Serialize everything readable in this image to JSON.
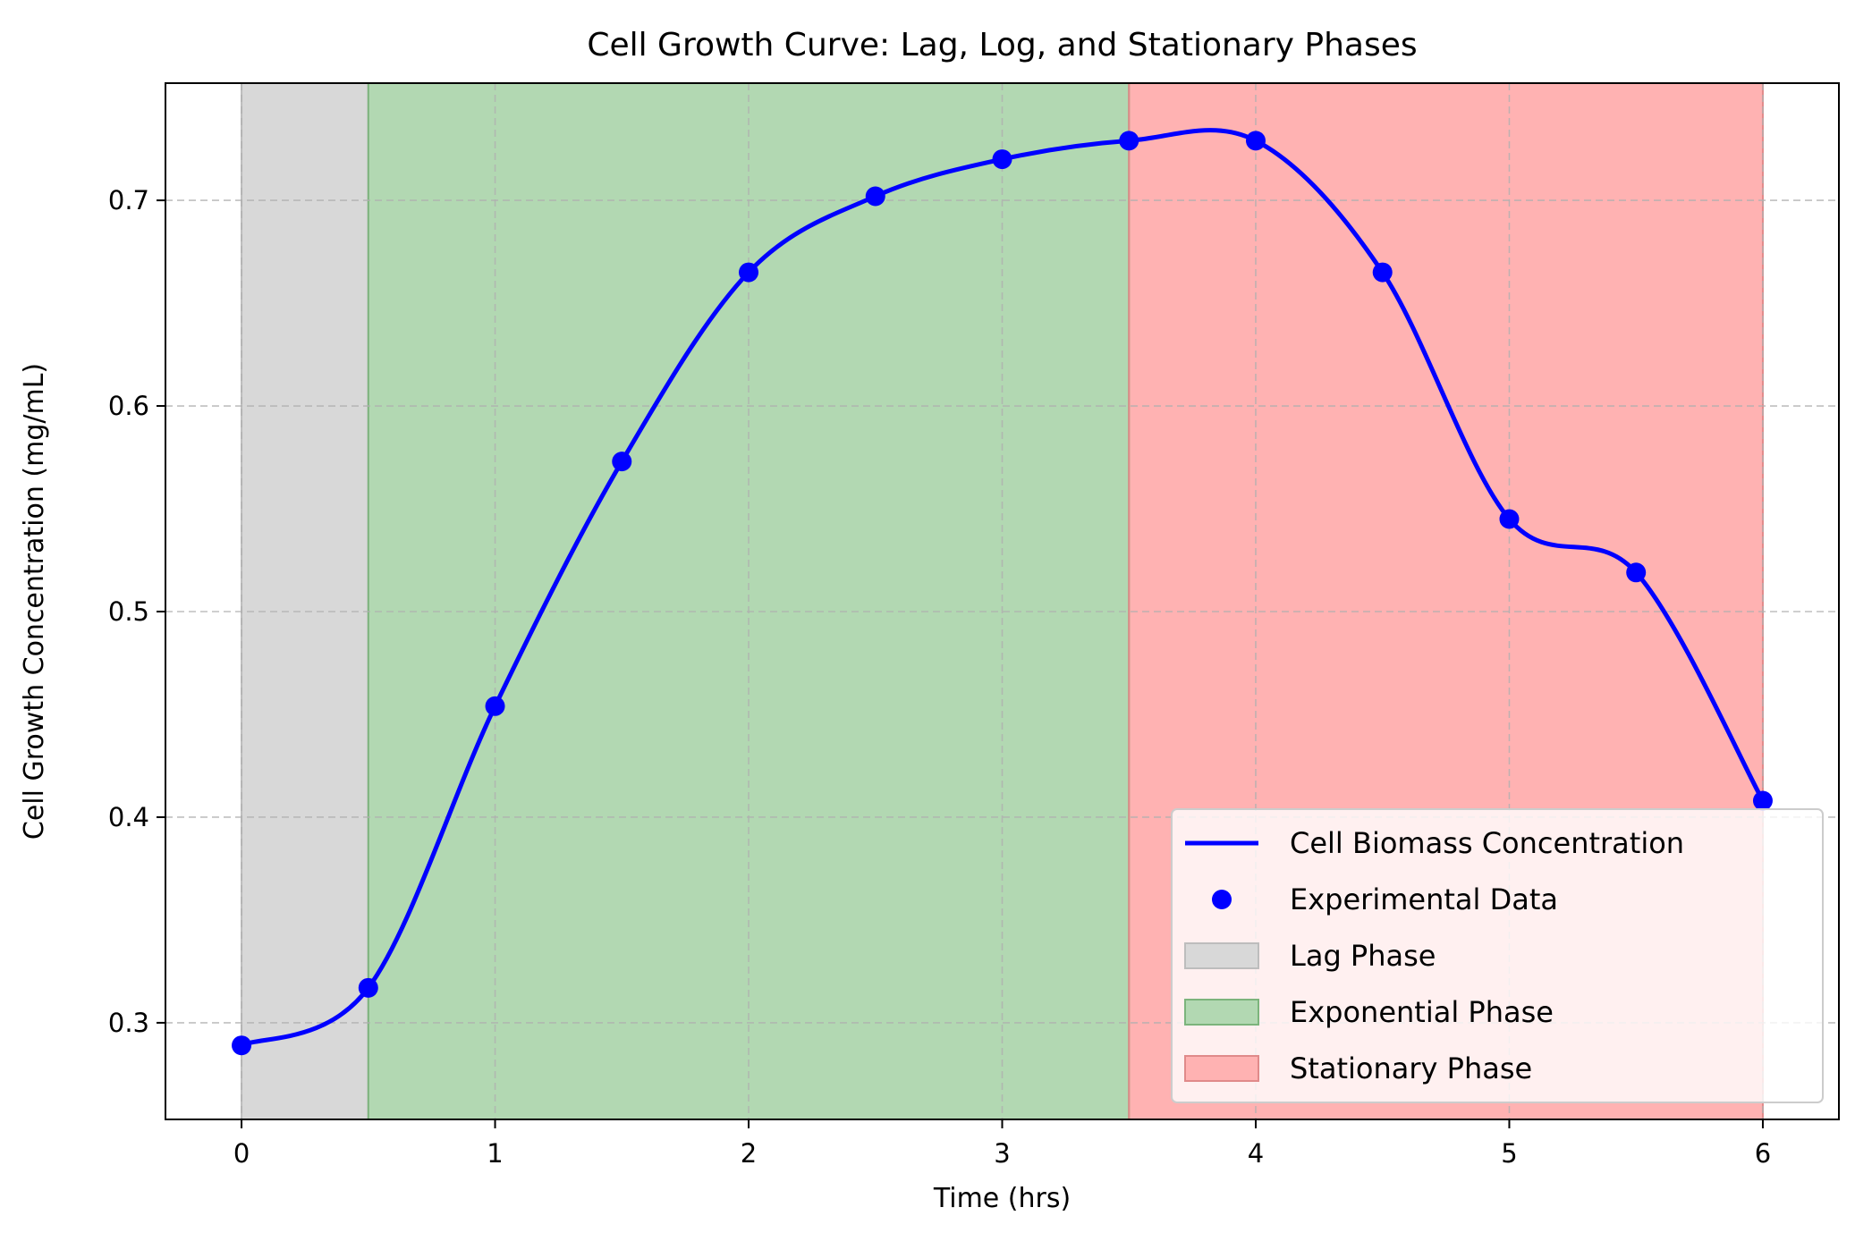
{
  "chart_data": {
    "type": "line",
    "title": "Cell Growth Curve: Lag, Log, and Stationary Phases",
    "xlabel": "Time (hrs)",
    "ylabel": "Cell Growth Concentration (mg/mL)",
    "xlim": [
      -0.3,
      6.3
    ],
    "ylim": [
      0.253,
      0.757
    ],
    "xticks": [
      0,
      1,
      2,
      3,
      4,
      5,
      6
    ],
    "xtick_labels": [
      "0",
      "1",
      "2",
      "3",
      "4",
      "5",
      "6"
    ],
    "yticks": [
      0.3,
      0.4,
      0.5,
      0.6,
      0.7
    ],
    "ytick_labels": [
      "0.3",
      "0.4",
      "0.5",
      "0.6",
      "0.7"
    ],
    "grid": true,
    "legend_position": "lower-right",
    "x": [
      0,
      0.5,
      1,
      1.5,
      2,
      2.5,
      3,
      3.5,
      4,
      4.5,
      5,
      5.5,
      6
    ],
    "series": [
      {
        "name": "Cell Biomass Concentration",
        "kind": "line",
        "color": "#0000ff",
        "values": [
          0.289,
          0.317,
          0.454,
          0.573,
          0.665,
          0.702,
          0.72,
          0.729,
          0.729,
          0.665,
          0.545,
          0.519,
          0.408
        ]
      },
      {
        "name": "Experimental Data",
        "kind": "scatter",
        "color": "#0000ff",
        "values": [
          0.289,
          0.317,
          0.454,
          0.573,
          0.665,
          0.702,
          0.72,
          0.729,
          0.729,
          0.665,
          0.545,
          0.519,
          0.408
        ]
      }
    ],
    "phases": [
      {
        "name": "Lag Phase",
        "start": 0,
        "end": 0.5,
        "fill": "#d8d8d8",
        "edge": "#bdbdbd"
      },
      {
        "name": "Exponential Phase",
        "start": 0.5,
        "end": 3.5,
        "fill": "#b2d8b2",
        "edge": "#7cb47c"
      },
      {
        "name": "Stationary Phase",
        "start": 3.5,
        "end": 6,
        "fill": "#ffb2b2",
        "edge": "#e08a8a"
      }
    ]
  }
}
